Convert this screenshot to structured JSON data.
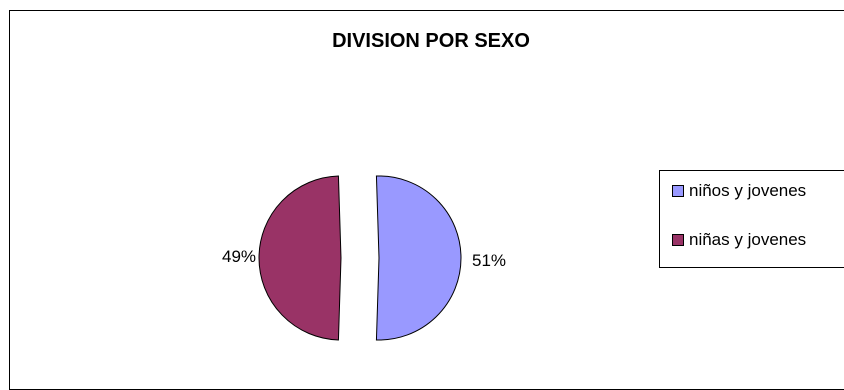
{
  "chart_data": {
    "type": "pie",
    "title": "DIVISION POR SEXO",
    "categories": [
      "niños y jovenes",
      "niñas y jovenes"
    ],
    "values": [
      51,
      49
    ],
    "labels": [
      "51%",
      "49%"
    ],
    "colors": [
      "#9999ff",
      "#993366"
    ],
    "exploded": true,
    "legend_position": "right"
  }
}
